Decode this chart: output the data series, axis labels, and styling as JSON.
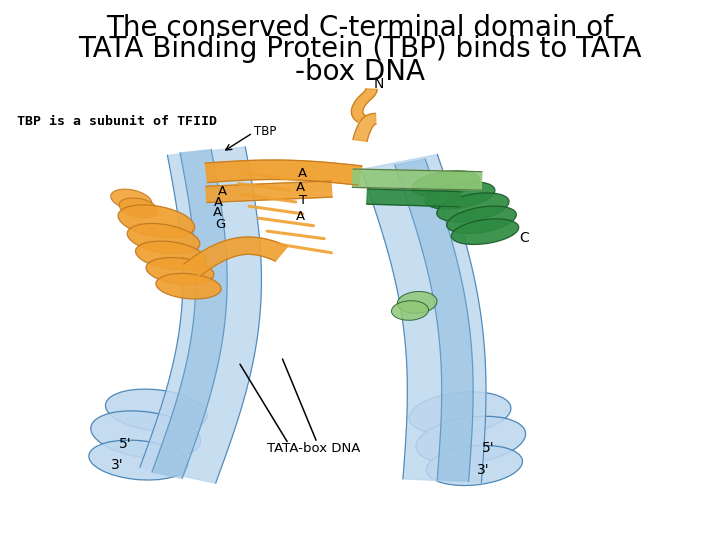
{
  "title_line1": "The conserved C-terminal domain of",
  "title_line2": "TATA Binding Protein (TBP) binds to TATA",
  "title_line3": "-box DNA",
  "title_fontsize": 20,
  "bg_color": "#ffffff",
  "label_tbp_subunit": "TBP is a subunit of TFIID",
  "label_tbp": "TBP",
  "label_N": "N",
  "label_C": "C",
  "label_5p_left": "5'",
  "label_3p_left": "3'",
  "label_5p_right": "5'",
  "label_3p_right": "3'",
  "label_tata_box": "TATA-box DNA",
  "orange_color": "#F0A030",
  "orange_dark": "#C07820",
  "green_color": "#2E8B40",
  "green_dark": "#1A5A28",
  "light_green_color": "#90C878",
  "light_green_dark": "#507040",
  "blue_color": "#6BAED6",
  "blue_dark": "#3A7AB0",
  "light_blue_color": "#BDD7EE",
  "light_blue_mid": "#92BFE0"
}
